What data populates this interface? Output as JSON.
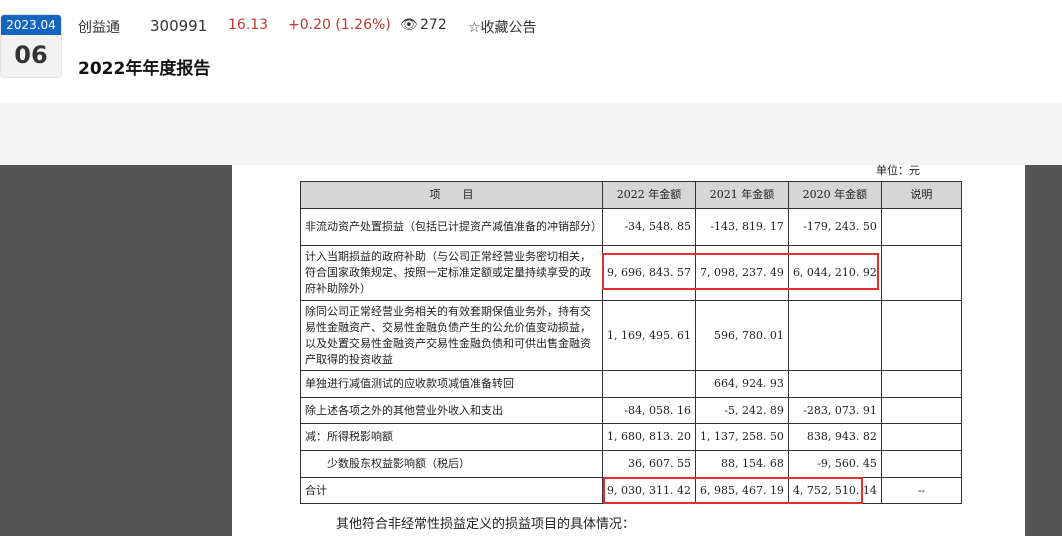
{
  "header": {
    "date_ym": "2023.04",
    "date_day": "06",
    "company": "创益通",
    "code": "300991",
    "price": "16.13",
    "change": "+0.20 (1.26%)",
    "views": "272",
    "views_icon": "eye-icon",
    "favorite": "☆收藏公告",
    "title": "2022年年度报告"
  },
  "doc": {
    "unit": "单位：元",
    "columns": [
      "项　　目",
      "2022 年金额",
      "2021 年金额",
      "2020 年金额",
      "说明"
    ],
    "rows": [
      [
        "非流动资产处置损益（包括已计提资产减值准备的冲销部分）",
        "-34, 548. 85",
        "-143, 819. 17",
        "-179, 243. 50",
        ""
      ],
      [
        "计入当期损益的政府补助（与公司正常经营业务密切相关，符合国家政策规定、按照一定标准定额或定量持续享受的政府补助除外）",
        "9, 696, 843. 57",
        "7, 098, 237. 49",
        "6, 044, 210. 92",
        ""
      ],
      [
        "除同公司正常经营业务相关的有效套期保值业务外，持有交易性金融资产、交易性金融负债产生的公允价值变动损益，以及处置交易性金融资产交易性金融负债和可供出售金融资产取得的投资收益",
        "1, 169, 495. 61",
        "596, 780. 01",
        "",
        ""
      ],
      [
        "单独进行减值测试的应收款项减值准备转回",
        "",
        "664, 924. 93",
        "",
        ""
      ],
      [
        "除上述各项之外的其他营业外收入和支出",
        "-84, 058. 16",
        "-5, 242. 89",
        "-283, 073. 91",
        ""
      ],
      [
        "减：所得税影响额",
        "1, 680, 813. 20",
        "1, 137, 258. 50",
        "838, 943. 82",
        ""
      ],
      [
        "　　少数股东权益影响额（税后）",
        "36, 607. 55",
        "88, 154. 68",
        "-9, 560. 45",
        ""
      ],
      [
        "合计",
        "9, 030, 311. 42",
        "6, 985, 467. 19",
        "4, 752, 510. 14",
        "--"
      ]
    ],
    "footer": "其他符合非经常性损益定义的损益项目的具体情况：",
    "highlight_color": "#e03030"
  }
}
